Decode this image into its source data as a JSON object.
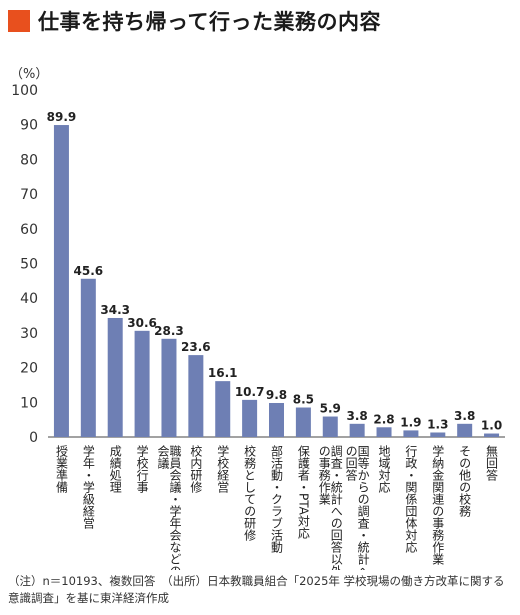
{
  "title": "仕事を持ち帰って行った業務の内容",
  "footnote": "（注）n＝10193、複数回答　（出所）日本教職員組合「2025年 学校現場の働き方改革に関する意識調査」を基に東洋経済作成",
  "colors": {
    "accent": "#e8501e",
    "bar": "#6e7fb4"
  },
  "chart_data": {
    "type": "bar",
    "unit_label": "（%）",
    "ylim": [
      0,
      100
    ],
    "yticks": [
      0,
      10,
      20,
      30,
      40,
      50,
      60,
      70,
      80,
      90,
      100
    ],
    "grid": false,
    "categories": [
      "授業準備",
      "学年・学級経営",
      "成績処理",
      "学校行事",
      "職員会議・学年会などの会議",
      "校内研修",
      "学校経営",
      "校務としての研修",
      "部活動・クラブ活動",
      "保護者・PTA対応",
      "調査・統計への回答以外の事務作業",
      "国等からの調査・統計への回答",
      "地域対応",
      "行政・関係団体対応",
      "学納金関連の事務作業",
      "その他の校務",
      "無回答"
    ],
    "values": [
      89.9,
      45.6,
      34.3,
      30.6,
      28.3,
      23.6,
      16.1,
      10.7,
      9.8,
      8.5,
      5.9,
      3.8,
      2.8,
      1.9,
      1.3,
      3.8,
      1.0
    ],
    "value_labels": [
      "89.9",
      "45.6",
      "34.3",
      "30.6",
      "28.3",
      "23.6",
      "16.1",
      "10.7",
      "9.8",
      "8.5",
      "5.9",
      "3.8",
      "2.8",
      "1.9",
      "1.3",
      "3.8",
      "1.0"
    ]
  }
}
